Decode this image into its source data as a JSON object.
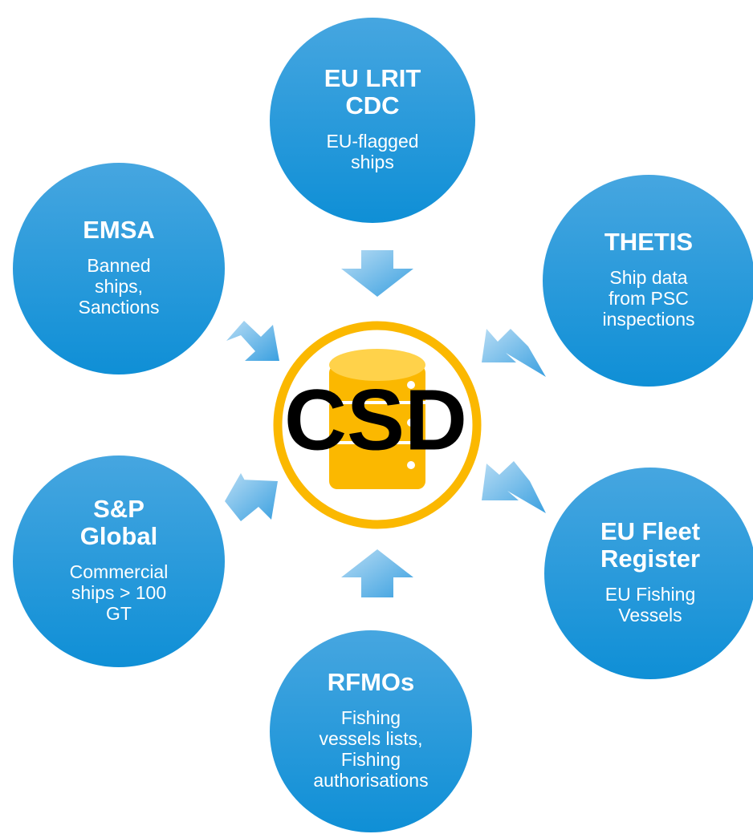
{
  "center": {
    "label": "CSD"
  },
  "nodes": [
    {
      "title": [
        "EU LRIT",
        "CDC"
      ],
      "description": [
        "EU-flagged",
        "ships"
      ]
    },
    {
      "title": [
        "EMSA"
      ],
      "description": [
        "Banned",
        "ships,",
        "Sanctions"
      ]
    },
    {
      "title": [
        "THETIS"
      ],
      "description": [
        "Ship data",
        "from PSC",
        "inspections"
      ]
    },
    {
      "title": [
        "S&P",
        "Global"
      ],
      "description": [
        "Commercial",
        "ships > 100",
        "GT"
      ]
    },
    {
      "title": [
        "EU Fleet",
        "Register"
      ],
      "description": [
        "EU Fishing",
        "Vessels"
      ]
    },
    {
      "title": [
        "RFMOs"
      ],
      "description": [
        "Fishing",
        "vessels lists,",
        "Fishing",
        "authorisations"
      ]
    }
  ]
}
